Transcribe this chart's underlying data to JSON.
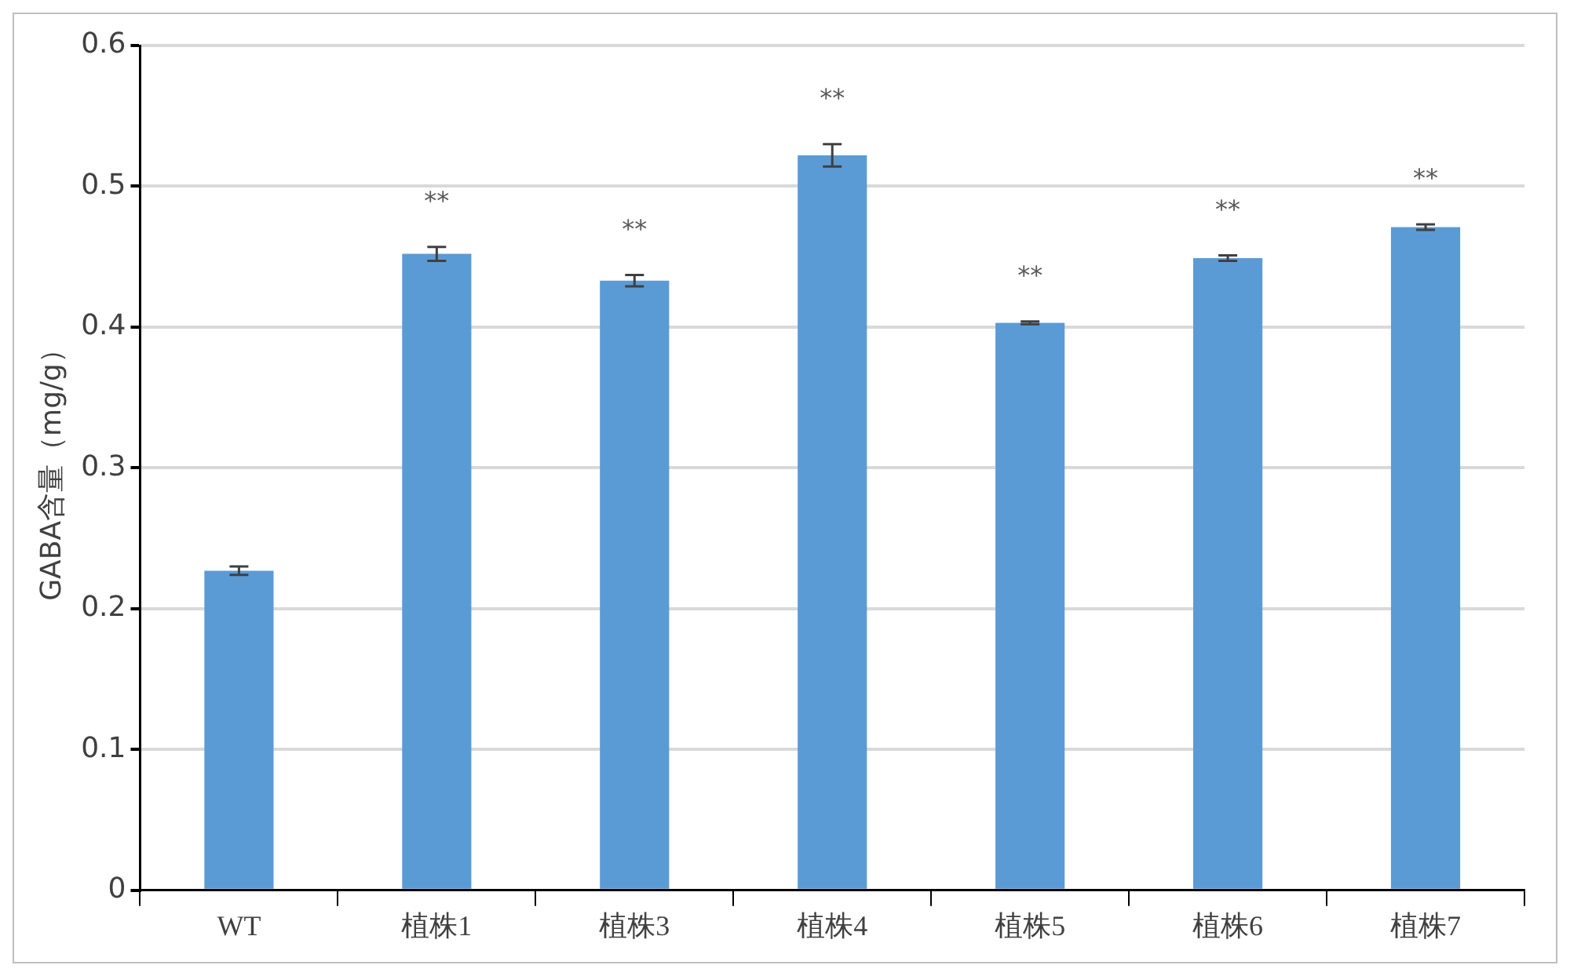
{
  "chart_data": {
    "type": "bar",
    "ylabel": "GABA含量（mg/g）",
    "categories": [
      "WT",
      "植株1",
      "植株3",
      "植株4",
      "植株5",
      "植株6",
      "植株7"
    ],
    "values": [
      0.227,
      0.452,
      0.433,
      0.522,
      0.403,
      0.449,
      0.471
    ],
    "errors": [
      0.003,
      0.005,
      0.004,
      0.008,
      0.001,
      0.002,
      0.002
    ],
    "color": "#5b9bd5",
    "ylim": [
      0,
      0.6
    ],
    "yticks": [
      0,
      0.1,
      0.2,
      0.3,
      0.4,
      0.5,
      0.6
    ],
    "grid": "y",
    "annotations": [
      {
        "text": "**",
        "x": "植株1",
        "y": 0.452
      },
      {
        "text": "**",
        "x": "植株3",
        "y": 0.433
      },
      {
        "text": "**",
        "x": "植株4",
        "y": 0.522
      },
      {
        "text": "**",
        "x": "植株5",
        "y": 0.403
      },
      {
        "text": "**",
        "x": "植株6",
        "y": 0.449
      },
      {
        "text": "**",
        "x": "植株7",
        "y": 0.471
      }
    ]
  }
}
